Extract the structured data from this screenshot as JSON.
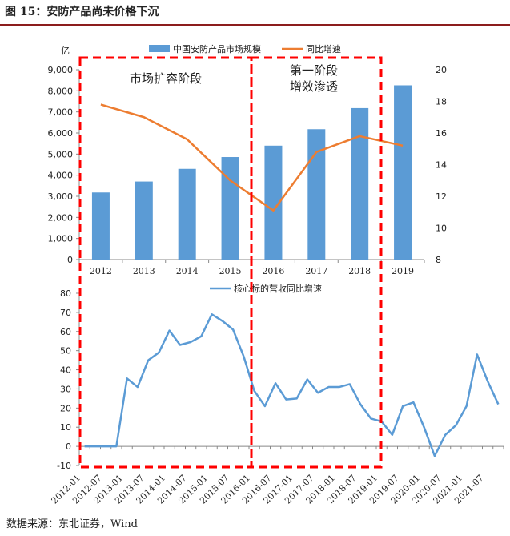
{
  "figure_title": "图 15：安防产品尚未价格下沉",
  "source": "数据来源：东北证券，Wind",
  "colors": {
    "bar": "#5b9bd5",
    "line_top": "#ed7d31",
    "line_bottom": "#5b9bd5",
    "box": "#ff0000",
    "rule": "#8c1d1d"
  },
  "annotations": {
    "phase1": "市场扩容阶段",
    "phase2_line1": "第一阶段",
    "phase2_line2": "增效渗透"
  },
  "chart_data": [
    {
      "type": "bar+line",
      "ylabel_left": "亿",
      "categories": [
        "2012",
        "2013",
        "2014",
        "2015",
        "2016",
        "2017",
        "2018",
        "2019"
      ],
      "series": [
        {
          "name": "中国安防产品市场规模",
          "type": "bar",
          "axis": "left",
          "values": [
            3180,
            3700,
            4300,
            4860,
            5400,
            6180,
            7180,
            8260
          ]
        },
        {
          "name": "同比增速",
          "type": "line",
          "axis": "right",
          "values": [
            17.8,
            17.0,
            15.6,
            13.0,
            11.1,
            14.8,
            15.8,
            15.2
          ]
        }
      ],
      "ylim_left": [
        0,
        9000
      ],
      "yticks_left": [
        "0",
        "1,000",
        "2,000",
        "3,000",
        "4,000",
        "5,000",
        "6,000",
        "7,000",
        "8,000",
        "9,000"
      ],
      "ylim_right": [
        8,
        20
      ],
      "yticks_right": [
        "8",
        "10",
        "12",
        "14",
        "16",
        "18",
        "20"
      ],
      "legend": "top-center"
    },
    {
      "type": "line",
      "series": [
        {
          "name": "核心标的营收同比增速",
          "values": [
            0,
            0,
            0,
            0,
            35.5,
            31,
            45,
            49,
            60.5,
            53,
            54.5,
            57.5,
            69,
            65.5,
            61,
            47,
            29,
            21,
            33,
            24.5,
            25,
            35,
            28,
            31,
            31,
            32.5,
            22,
            14.5,
            13,
            6,
            21,
            23,
            10,
            -5,
            6,
            11,
            21,
            48,
            34,
            22
          ]
        }
      ],
      "xticks": [
        "2012-01",
        "2012-07",
        "2013-01",
        "2013-07",
        "2014-01",
        "2014-07",
        "2015-01",
        "2015-07",
        "2016-01",
        "2016-07",
        "2017-01",
        "2017-07",
        "2018-01",
        "2018-07",
        "2019-01",
        "2019-07",
        "2020-01",
        "2020-07",
        "2021-01",
        "2021-07"
      ],
      "ylim": [
        -10,
        80
      ],
      "yticks": [
        "-10",
        "0",
        "10",
        "20",
        "30",
        "40",
        "50",
        "60",
        "70",
        "80"
      ],
      "legend": "top-center"
    }
  ]
}
